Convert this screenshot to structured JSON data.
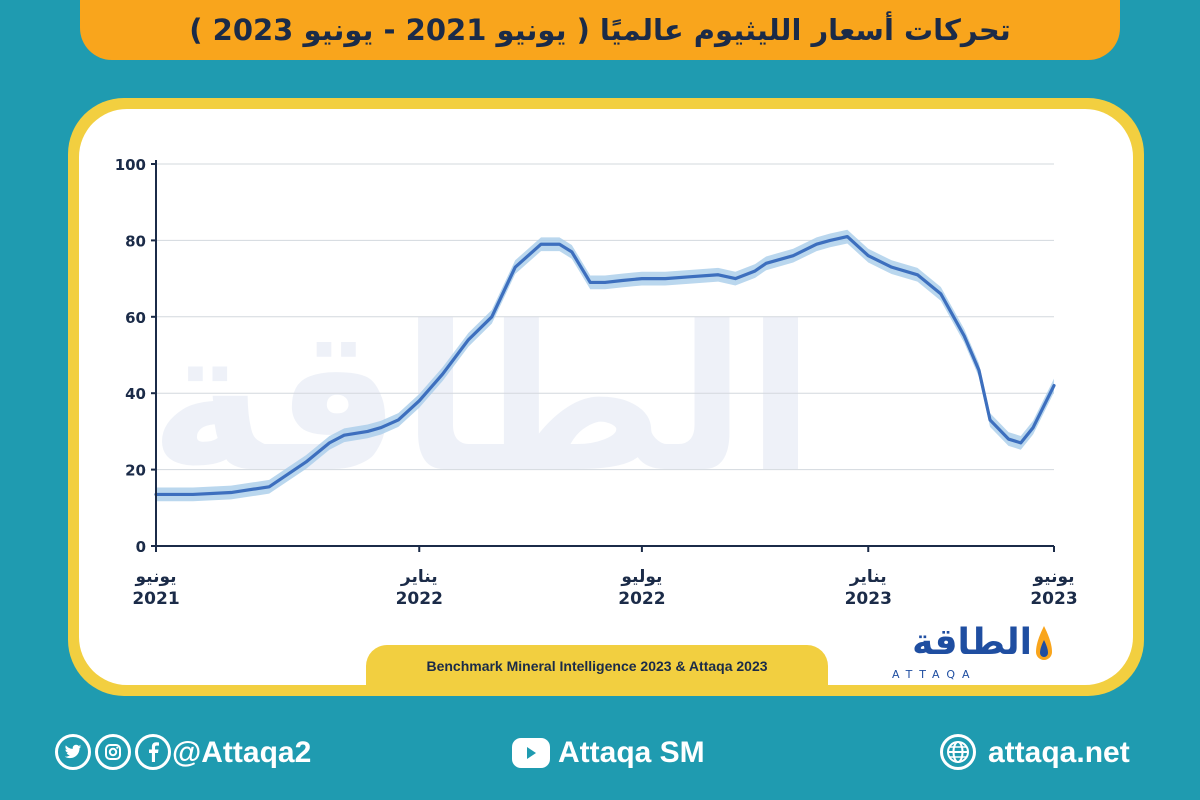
{
  "title": "تحركات أسعار الليثيوم عالميًا ( يونيو 2021 - يونيو 2023 )",
  "source": "Benchmark Mineral Intelligence 2023 & Attaqa 2023",
  "logo": {
    "arabic": "الطاقة",
    "english": "ATTAQA"
  },
  "footer": {
    "social_handle": "@Attaqa2",
    "youtube_label": "Attaqa SM",
    "website": "attaqa.net",
    "social_icons": [
      "twitter-icon",
      "instagram-icon",
      "facebook-icon"
    ]
  },
  "colors": {
    "background": "#1f9bb0",
    "title_bar": "#f9a51c",
    "frame": "#f2cf40",
    "line": "#3d6fbe",
    "band": "#a9cdea",
    "text_dark": "#1b2b48"
  },
  "chart_data": {
    "type": "line",
    "title": "تحركات أسعار الليثيوم عالميًا ( يونيو 2021 - يونيو 2023 )",
    "xlabel": "",
    "ylabel": "",
    "ylim": [
      0,
      100
    ],
    "xlim": [
      "2021-06",
      "2023-06"
    ],
    "grid": true,
    "yticks": [
      0,
      20,
      40,
      60,
      80,
      100
    ],
    "x_ticks": [
      {
        "date": "2021-06",
        "label_line1": "يونيو",
        "label_line2": "2021"
      },
      {
        "date": "2022-01",
        "label_line1": "يناير",
        "label_line2": "2022"
      },
      {
        "date": "2022-07",
        "label_line1": "يوليو",
        "label_line2": "2022"
      },
      {
        "date": "2023-01",
        "label_line1": "يناير",
        "label_line2": "2023"
      },
      {
        "date": "2023-06",
        "label_line1": "يونيو",
        "label_line2": "2023"
      }
    ],
    "series": [
      {
        "x": [
          "2021-06-01",
          "2021-07-01",
          "2021-08-01",
          "2021-09-01",
          "2021-10-01",
          "2021-10-20",
          "2021-11-01",
          "2021-11-20",
          "2021-12-01",
          "2021-12-15",
          "2022-01-01",
          "2022-01-20",
          "2022-02-10",
          "2022-03-01",
          "2022-03-20",
          "2022-04-10",
          "2022-04-25",
          "2022-05-05",
          "2022-05-20",
          "2022-06-01",
          "2022-06-15",
          "2022-07-01",
          "2022-07-20",
          "2022-08-10",
          "2022-09-01",
          "2022-09-15",
          "2022-10-01",
          "2022-10-10",
          "2022-11-01",
          "2022-11-20",
          "2022-12-01",
          "2022-12-15",
          "2023-01-01",
          "2023-01-20",
          "2023-02-10",
          "2023-03-01",
          "2023-03-20",
          "2023-04-01",
          "2023-04-10",
          "2023-04-25",
          "2023-05-05",
          "2023-05-15",
          "2023-06-01"
        ],
        "values": [
          13.5,
          13.5,
          14,
          15.5,
          22,
          27,
          29,
          30,
          31,
          33,
          38,
          45,
          54,
          60,
          73,
          79,
          79,
          77,
          69,
          69,
          69.5,
          70,
          70,
          70.5,
          71,
          70,
          72,
          74,
          76,
          79,
          80,
          81,
          76,
          73,
          71,
          66,
          55,
          46,
          33,
          28,
          27,
          31,
          42
        ],
        "band": 1.8
      }
    ]
  }
}
